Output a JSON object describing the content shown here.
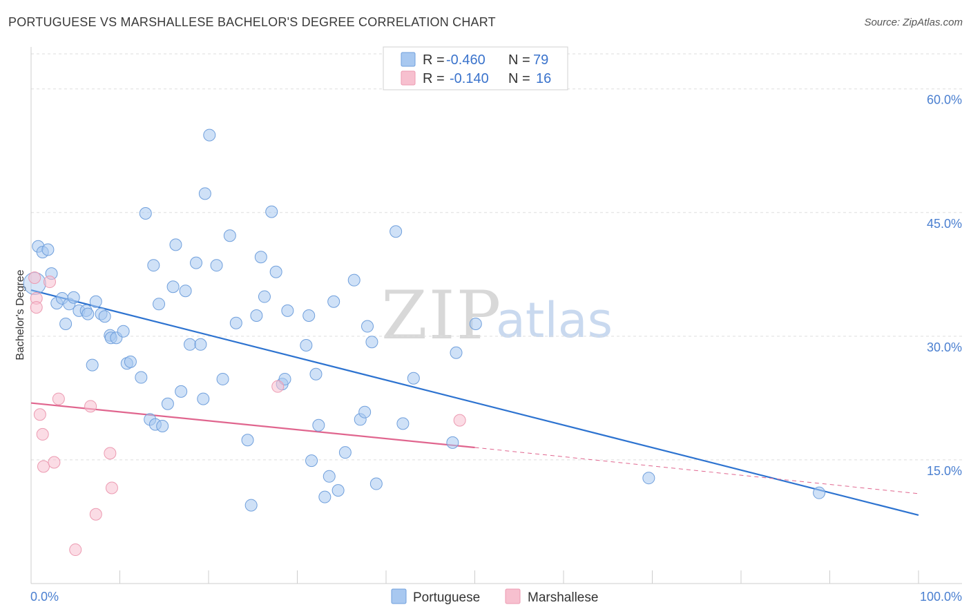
{
  "header": {
    "title": "PORTUGUESE VS MARSHALLESE BACHELOR'S DEGREE CORRELATION CHART",
    "source": "Source: ZipAtlas.com"
  },
  "watermark": {
    "zip": "ZIP",
    "atlas": "atlas"
  },
  "colors": {
    "portuguese_fill": "#a8c8f0",
    "portuguese_stroke": "#6f9fdc",
    "portuguese_line": "#2d73d0",
    "marshallese_fill": "#f7c0cf",
    "marshallese_stroke": "#ec9ab1",
    "marshallese_line": "#e0658e",
    "axis_text": "#4a7fd0",
    "grid": "#dddddd"
  },
  "legend": {
    "rows": [
      {
        "r_label": "R =",
        "r_value": "-0.460",
        "n_label": "N =",
        "n_value": "79"
      },
      {
        "r_label": "R =",
        "r_value": "-0.140",
        "n_label": "N =",
        "n_value": "16"
      }
    ]
  },
  "bottom_legend": {
    "items": [
      "Portuguese",
      "Marshallese"
    ]
  },
  "chart_data": {
    "type": "scatter",
    "title": "PORTUGUESE VS MARSHALLESE BACHELOR'S DEGREE CORRELATION CHART",
    "xlabel": "",
    "ylabel": "Bachelor's Degree",
    "xlim": [
      0,
      100
    ],
    "ylim": [
      0,
      64.5
    ],
    "x_tick_labels": [
      "0.0%",
      "100.0%"
    ],
    "y_ticks": [
      15,
      30,
      45,
      60
    ],
    "y_tick_labels": [
      "15.0%",
      "30.0%",
      "45.0%",
      "60.0%"
    ],
    "grid": true,
    "series": [
      {
        "name": "Portuguese",
        "R": -0.46,
        "N": 79,
        "trend": {
          "x0": 0,
          "y0": 35.6,
          "x1": 100,
          "y1": 8.3
        },
        "points": [
          [
            0.8,
            40.9
          ],
          [
            1.3,
            40.2
          ],
          [
            1.9,
            40.5
          ],
          [
            2.3,
            37.6
          ],
          [
            2.9,
            34.0
          ],
          [
            3.5,
            34.6
          ],
          [
            3.9,
            31.5
          ],
          [
            4.3,
            33.9
          ],
          [
            4.8,
            34.7
          ],
          [
            5.4,
            33.1
          ],
          [
            6.2,
            33.1
          ],
          [
            6.4,
            32.7
          ],
          [
            6.9,
            26.5
          ],
          [
            7.3,
            34.2
          ],
          [
            7.9,
            32.7
          ],
          [
            8.3,
            32.4
          ],
          [
            8.9,
            30.1
          ],
          [
            9.0,
            29.8
          ],
          [
            9.6,
            29.8
          ],
          [
            10.4,
            30.6
          ],
          [
            10.8,
            26.7
          ],
          [
            11.2,
            26.9
          ],
          [
            12.4,
            25.0
          ],
          [
            12.9,
            44.9
          ],
          [
            13.4,
            19.9
          ],
          [
            13.8,
            38.6
          ],
          [
            14.0,
            19.3
          ],
          [
            14.4,
            33.9
          ],
          [
            14.8,
            19.1
          ],
          [
            15.4,
            21.8
          ],
          [
            16.0,
            36.0
          ],
          [
            16.3,
            41.1
          ],
          [
            16.9,
            23.3
          ],
          [
            17.4,
            35.5
          ],
          [
            17.9,
            29.0
          ],
          [
            18.6,
            38.9
          ],
          [
            19.1,
            29.0
          ],
          [
            19.4,
            22.4
          ],
          [
            19.6,
            47.3
          ],
          [
            20.1,
            54.4
          ],
          [
            20.9,
            38.6
          ],
          [
            21.6,
            24.8
          ],
          [
            22.4,
            42.2
          ],
          [
            23.1,
            31.6
          ],
          [
            24.4,
            17.4
          ],
          [
            24.8,
            9.5
          ],
          [
            25.4,
            32.5
          ],
          [
            25.9,
            39.6
          ],
          [
            26.3,
            34.8
          ],
          [
            27.1,
            45.1
          ],
          [
            27.6,
            37.8
          ],
          [
            28.3,
            24.2
          ],
          [
            28.6,
            24.8
          ],
          [
            28.9,
            33.1
          ],
          [
            31.0,
            28.9
          ],
          [
            31.3,
            32.5
          ],
          [
            31.6,
            14.9
          ],
          [
            32.1,
            25.4
          ],
          [
            32.4,
            19.2
          ],
          [
            33.1,
            10.5
          ],
          [
            33.6,
            13.0
          ],
          [
            34.1,
            34.2
          ],
          [
            34.6,
            11.3
          ],
          [
            35.4,
            15.9
          ],
          [
            36.4,
            36.8
          ],
          [
            37.1,
            19.9
          ],
          [
            37.6,
            20.8
          ],
          [
            37.9,
            31.2
          ],
          [
            38.4,
            29.3
          ],
          [
            38.9,
            12.1
          ],
          [
            41.1,
            42.7
          ],
          [
            41.9,
            19.4
          ],
          [
            43.1,
            24.9
          ],
          [
            47.5,
            17.1
          ],
          [
            47.9,
            28.0
          ],
          [
            50.1,
            31.5
          ],
          [
            69.6,
            12.8
          ],
          [
            88.8,
            11.0
          ],
          [
            0.4,
            36.4
          ]
        ]
      },
      {
        "name": "Marshallese",
        "R": -0.14,
        "N": 16,
        "trend": {
          "x0": 0,
          "y0": 21.9,
          "x1": 50,
          "y1": 16.5,
          "x2": 100,
          "y2": 10.9
        },
        "points": [
          [
            0.4,
            37.1
          ],
          [
            0.6,
            34.6
          ],
          [
            0.6,
            33.5
          ],
          [
            1.0,
            20.5
          ],
          [
            1.3,
            18.1
          ],
          [
            1.4,
            14.2
          ],
          [
            2.1,
            36.6
          ],
          [
            2.6,
            14.7
          ],
          [
            3.1,
            22.4
          ],
          [
            5.0,
            4.1
          ],
          [
            6.7,
            21.5
          ],
          [
            7.3,
            8.4
          ],
          [
            8.9,
            15.8
          ],
          [
            9.1,
            11.6
          ],
          [
            27.8,
            23.9
          ],
          [
            48.3,
            19.8
          ]
        ]
      }
    ]
  }
}
